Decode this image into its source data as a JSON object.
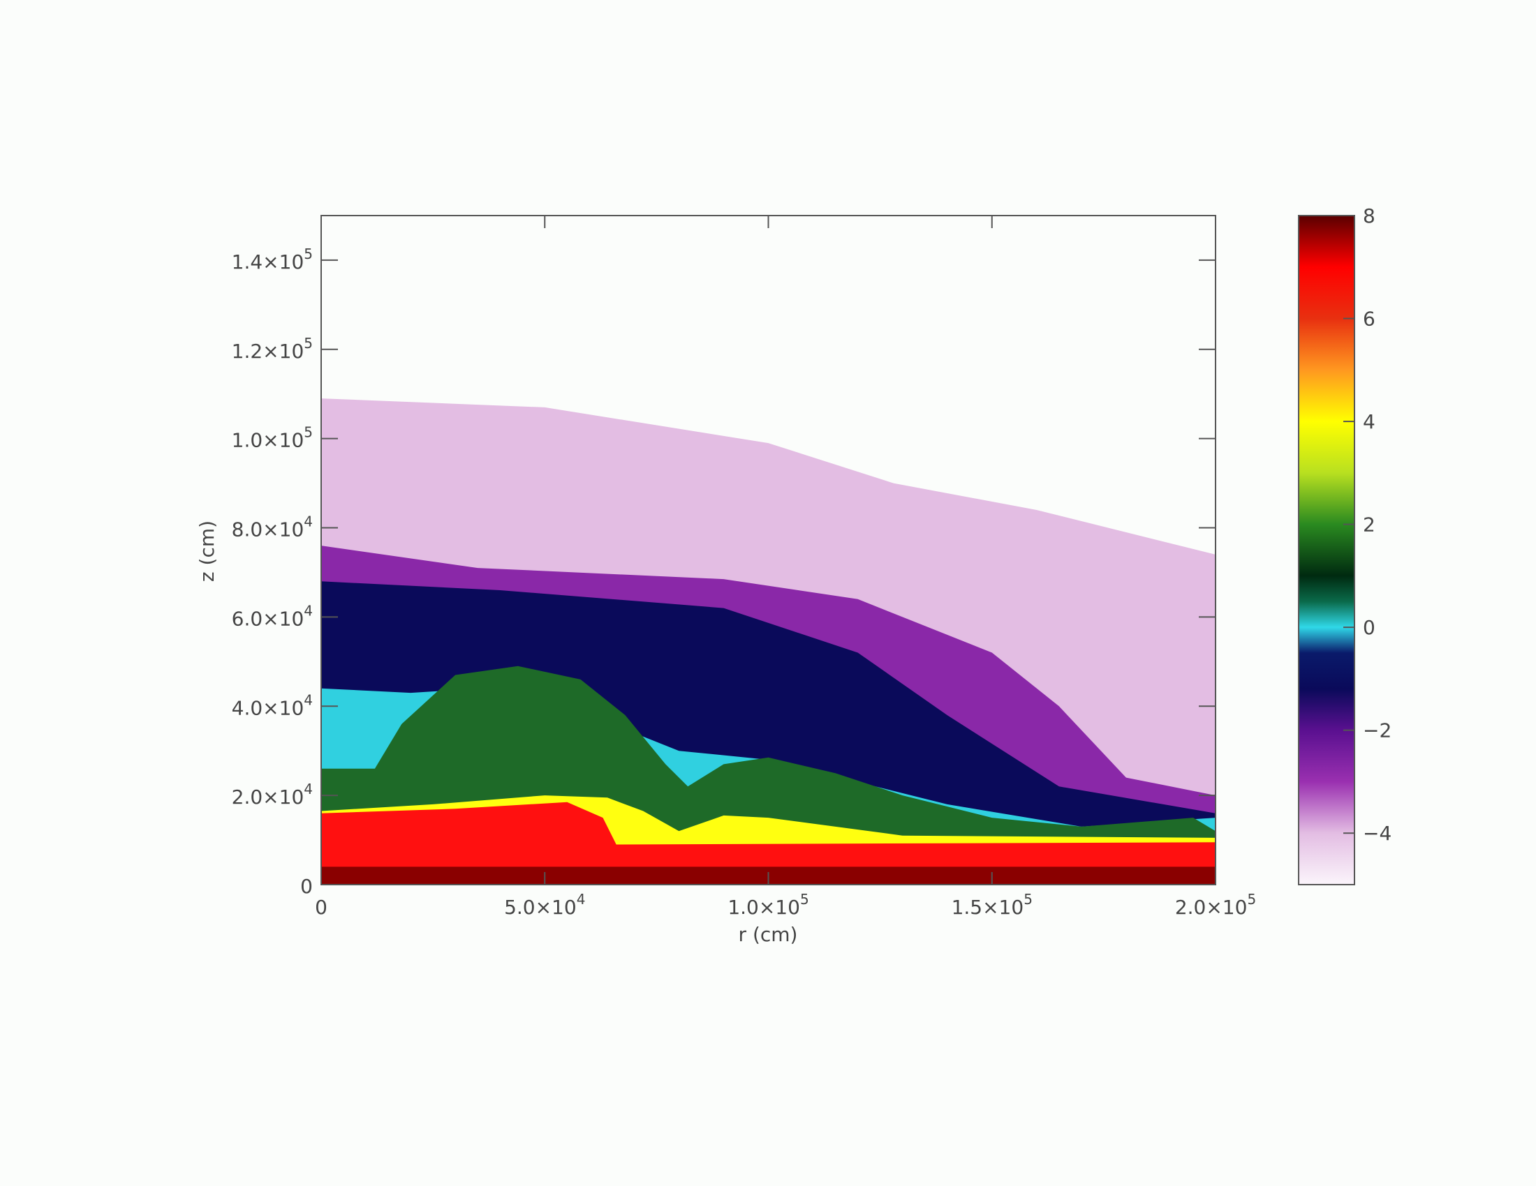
{
  "chart_data": {
    "type": "heatmap",
    "title": "",
    "xlabel": "r (cm)",
    "ylabel": "z (cm)",
    "xlim": [
      0,
      200000
    ],
    "ylim": [
      0,
      150000
    ],
    "x_ticks": [
      {
        "value": 0,
        "label": "0"
      },
      {
        "value": 50000,
        "label": "5.0×10",
        "exp": "4"
      },
      {
        "value": 100000,
        "label": "1.0×10",
        "exp": "5"
      },
      {
        "value": 150000,
        "label": "1.5×10",
        "exp": "5"
      },
      {
        "value": 200000,
        "label": "2.0×10",
        "exp": "5"
      }
    ],
    "y_ticks": [
      {
        "value": 0,
        "label": "0"
      },
      {
        "value": 20000,
        "label": "2.0×10",
        "exp": "4"
      },
      {
        "value": 40000,
        "label": "4.0×10",
        "exp": "4"
      },
      {
        "value": 60000,
        "label": "6.0×10",
        "exp": "4"
      },
      {
        "value": 80000,
        "label": "8.0×10",
        "exp": "4"
      },
      {
        "value": 100000,
        "label": "1.0×10",
        "exp": "5"
      },
      {
        "value": 120000,
        "label": "1.2×10",
        "exp": "5"
      },
      {
        "value": 140000,
        "label": "1.4×10",
        "exp": "5"
      }
    ],
    "colorbar": {
      "range": [
        -5,
        8
      ],
      "ticks": [
        {
          "value": 8,
          "label": "8"
        },
        {
          "value": 6,
          "label": "6"
        },
        {
          "value": 4,
          "label": "4"
        },
        {
          "value": 2,
          "label": "2"
        },
        {
          "value": 0,
          "label": "0"
        },
        {
          "value": -2,
          "label": "−2"
        },
        {
          "value": -4,
          "label": "−4"
        }
      ],
      "stops": [
        {
          "value": -5,
          "color": "#fbf5fb"
        },
        {
          "value": -4,
          "color": "#e3bde3"
        },
        {
          "value": -3,
          "color": "#9a30b0"
        },
        {
          "value": -2,
          "color": "#5a1090"
        },
        {
          "value": -1.2,
          "color": "#0a0a5a"
        },
        {
          "value": -0.5,
          "color": "#0a1a6a"
        },
        {
          "value": 0,
          "color": "#30d8e8"
        },
        {
          "value": 0.5,
          "color": "#0a6a4a"
        },
        {
          "value": 1,
          "color": "#002a10"
        },
        {
          "value": 2,
          "color": "#2a8a20"
        },
        {
          "value": 3,
          "color": "#b8e020"
        },
        {
          "value": 4,
          "color": "#ffff00"
        },
        {
          "value": 5,
          "color": "#ff9820"
        },
        {
          "value": 6,
          "color": "#e83010"
        },
        {
          "value": 7,
          "color": "#ff0000"
        },
        {
          "value": 8,
          "color": "#5a0000"
        }
      ]
    },
    "regions": [
      {
        "name": "outer shell",
        "color": "#e3bde3",
        "boundary": [
          [
            0,
            109000
          ],
          [
            50000,
            107000
          ],
          [
            100000,
            99000
          ],
          [
            128000,
            90000
          ],
          [
            160000,
            84000
          ],
          [
            200000,
            74000
          ],
          [
            200000,
            0
          ],
          [
            0,
            0
          ]
        ]
      },
      {
        "name": "purple layer",
        "color": "#8a28a8",
        "boundary": [
          [
            0,
            76000
          ],
          [
            35000,
            71000
          ],
          [
            90000,
            68500
          ],
          [
            120000,
            64000
          ],
          [
            150000,
            52000
          ],
          [
            165000,
            40000
          ],
          [
            180000,
            24000
          ],
          [
            200000,
            20000
          ],
          [
            200000,
            0
          ],
          [
            0,
            0
          ]
        ]
      },
      {
        "name": "navy layer",
        "color": "#0a0a5a",
        "boundary": [
          [
            0,
            68000
          ],
          [
            40000,
            66000
          ],
          [
            90000,
            62000
          ],
          [
            120000,
            52000
          ],
          [
            140000,
            38000
          ],
          [
            165000,
            22000
          ],
          [
            200000,
            16000
          ],
          [
            200000,
            0
          ],
          [
            0,
            0
          ]
        ]
      },
      {
        "name": "cyan layer",
        "color": "#30d0e0",
        "boundary": [
          [
            0,
            44000
          ],
          [
            20000,
            43000
          ],
          [
            36000,
            44000
          ],
          [
            60000,
            38000
          ],
          [
            80000,
            30000
          ],
          [
            100000,
            28000
          ],
          [
            140000,
            18000
          ],
          [
            170000,
            13000
          ],
          [
            200000,
            15000
          ],
          [
            200000,
            0
          ],
          [
            0,
            0
          ]
        ]
      },
      {
        "name": "green bubble",
        "color": "#1e6a28",
        "boundary": [
          [
            0,
            26000
          ],
          [
            12000,
            26000
          ],
          [
            18000,
            36000
          ],
          [
            30000,
            47000
          ],
          [
            44000,
            49000
          ],
          [
            58000,
            46000
          ],
          [
            68000,
            38000
          ],
          [
            77000,
            27000
          ],
          [
            82000,
            22000
          ],
          [
            90000,
            27000
          ],
          [
            100000,
            28500
          ],
          [
            115000,
            25000
          ],
          [
            130000,
            20000
          ],
          [
            150000,
            15000
          ],
          [
            170000,
            13000
          ],
          [
            195000,
            15000
          ],
          [
            200000,
            12000
          ],
          [
            200000,
            0
          ],
          [
            0,
            0
          ]
        ]
      },
      {
        "name": "yellow band",
        "color": "#ffff10",
        "boundary": [
          [
            0,
            16500
          ],
          [
            25000,
            18000
          ],
          [
            50000,
            20000
          ],
          [
            64000,
            19500
          ],
          [
            72000,
            16500
          ],
          [
            80000,
            12000
          ],
          [
            90000,
            15500
          ],
          [
            100000,
            15000
          ],
          [
            130000,
            11000
          ],
          [
            200000,
            10500
          ],
          [
            200000,
            0
          ],
          [
            0,
            0
          ]
        ]
      },
      {
        "name": "red core",
        "color": "#ff1010",
        "boundary": [
          [
            0,
            16000
          ],
          [
            30000,
            17000
          ],
          [
            55000,
            18500
          ],
          [
            63000,
            15000
          ],
          [
            66000,
            9000
          ],
          [
            200000,
            9500
          ],
          [
            200000,
            0
          ],
          [
            0,
            0
          ]
        ]
      },
      {
        "name": "dark red base",
        "color": "#8a0000",
        "boundary": [
          [
            0,
            4000
          ],
          [
            200000,
            4000
          ],
          [
            200000,
            0
          ],
          [
            0,
            0
          ]
        ]
      }
    ]
  }
}
